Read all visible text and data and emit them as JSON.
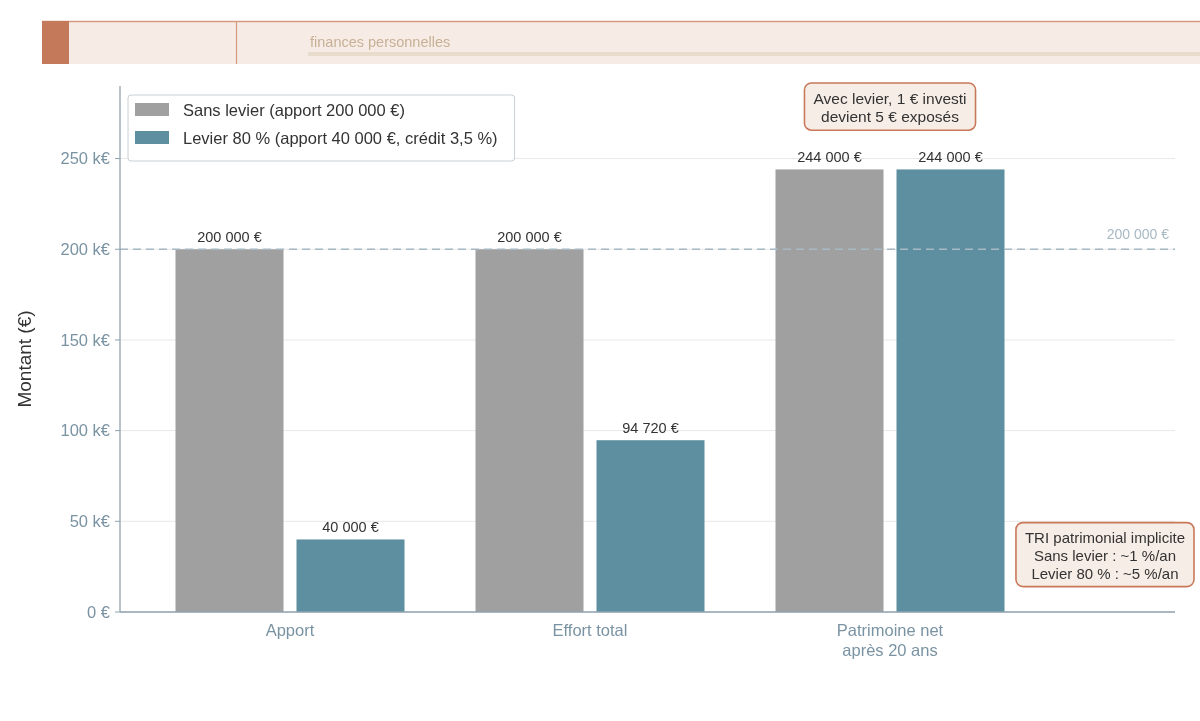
{
  "chart_data": {
    "type": "bar",
    "subtitle": "finances personnelles",
    "ylabel": "Montant (€)",
    "categories": [
      "Apport",
      "Effort total",
      "Patrimoine net\naprès 20 ans"
    ],
    "series": [
      {
        "name": "Sans levier (apport 200 000 €)",
        "color": "#a0a0a0",
        "values": [
          200000,
          200000,
          244000
        ],
        "value_labels": [
          "200 000 €",
          "200 000 €",
          "244 000 €"
        ]
      },
      {
        "name": "Levier 80 % (apport 40 000 €, crédit 3,5 %)",
        "color": "#5e8fa0",
        "values": [
          40000,
          94720,
          244000
        ],
        "value_labels": [
          "40 000 €",
          "94 720 €",
          "244 000 €"
        ]
      }
    ],
    "ylim": [
      0,
      290000
    ],
    "yticks": [
      {
        "value": 0,
        "label": "0 €"
      },
      {
        "value": 50000,
        "label": "50 k€"
      },
      {
        "value": 100000,
        "label": "100 k€"
      },
      {
        "value": 150000,
        "label": "150 k€"
      },
      {
        "value": 200000,
        "label": "200 k€"
      },
      {
        "value": 250000,
        "label": "250 k€"
      }
    ],
    "grid": "y",
    "legend": "top left",
    "ref_lines": [
      {
        "axis": "y",
        "value": 200000,
        "label": "200 000 €",
        "color": "#a7b9c3",
        "line_style": "dashed"
      }
    ],
    "annotations": [
      "Avec levier, 1 € investi\ndevient 5 € exposés",
      "TRI patrimonial implicite\nSans levier : ~1 %/an\nLevier 80 % : ~5 %/an"
    ]
  }
}
